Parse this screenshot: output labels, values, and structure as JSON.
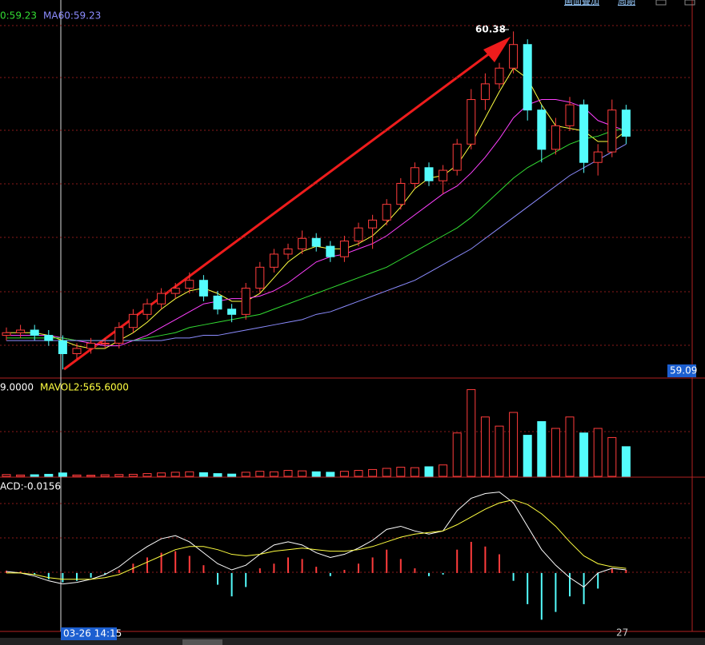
{
  "chart_data": [
    {
      "type": "candlestick",
      "legend": [
        {
          "text": "0:59.23",
          "color": "#33dd33"
        },
        {
          "text": "MA60:59.23",
          "color": "#8c8cff"
        }
      ],
      "high_label": "60.38",
      "price_label": "59.09",
      "ylim": [
        59.06,
        60.5
      ],
      "up_color": "#ff3c3c",
      "down_color": "#54fcfc",
      "open": [
        59.22,
        59.23,
        59.24,
        59.22,
        59.2,
        59.15,
        59.17,
        59.19,
        59.19,
        59.25,
        59.3,
        59.34,
        59.38,
        59.4,
        59.43,
        59.37,
        59.32,
        59.3,
        59.4,
        59.48,
        59.53,
        59.55,
        59.59,
        59.56,
        59.52,
        59.58,
        59.63,
        59.66,
        59.72,
        59.8,
        59.86,
        59.81,
        59.85,
        59.95,
        60.12,
        60.18,
        60.24,
        60.33,
        60.08,
        59.93,
        60.02,
        60.1,
        59.88,
        59.92,
        60.08
      ],
      "high": [
        59.25,
        59.26,
        59.26,
        59.24,
        59.22,
        59.19,
        59.21,
        59.21,
        59.27,
        59.32,
        59.36,
        59.4,
        59.42,
        59.46,
        59.45,
        59.39,
        59.34,
        59.42,
        59.5,
        59.55,
        59.57,
        59.62,
        59.61,
        59.58,
        59.6,
        59.65,
        59.68,
        59.74,
        59.82,
        59.88,
        59.88,
        59.87,
        59.97,
        60.16,
        60.22,
        60.26,
        60.38,
        60.35,
        60.1,
        60.05,
        60.13,
        60.12,
        59.95,
        60.12,
        60.1
      ],
      "low": [
        59.2,
        59.21,
        59.2,
        59.18,
        59.09,
        59.13,
        59.15,
        59.17,
        59.17,
        59.23,
        59.28,
        59.32,
        59.36,
        59.38,
        59.35,
        59.3,
        59.27,
        59.28,
        59.38,
        59.46,
        59.51,
        59.53,
        59.54,
        59.5,
        59.5,
        59.56,
        59.55,
        59.64,
        59.7,
        59.78,
        59.79,
        59.76,
        59.83,
        59.93,
        60.08,
        60.16,
        60.22,
        60.04,
        59.88,
        59.91,
        60.0,
        59.84,
        59.83,
        59.9,
        59.95
      ],
      "close": [
        59.23,
        59.24,
        59.22,
        59.2,
        59.15,
        59.17,
        59.19,
        59.19,
        59.25,
        59.3,
        59.34,
        59.38,
        59.4,
        59.43,
        59.37,
        59.32,
        59.3,
        59.4,
        59.48,
        59.53,
        59.55,
        59.59,
        59.56,
        59.52,
        59.58,
        59.63,
        59.66,
        59.72,
        59.8,
        59.86,
        59.81,
        59.85,
        59.95,
        60.12,
        60.18,
        60.24,
        60.33,
        60.08,
        59.93,
        60.02,
        60.1,
        59.88,
        59.92,
        60.08,
        59.98
      ],
      "lines": [
        {
          "color": "#ffff40",
          "values": [
            59.23,
            59.23,
            59.23,
            59.22,
            59.2,
            59.18,
            59.17,
            59.17,
            59.2,
            59.23,
            59.27,
            59.32,
            59.36,
            59.39,
            59.4,
            59.38,
            59.35,
            59.35,
            59.38,
            59.44,
            59.5,
            59.54,
            59.56,
            59.55,
            59.55,
            59.57,
            59.6,
            59.65,
            59.71,
            59.78,
            59.82,
            59.83,
            59.87,
            59.95,
            60.05,
            60.15,
            60.24,
            60.2,
            60.1,
            60.02,
            60.01,
            60.0,
            59.96,
            59.96,
            60.0
          ]
        },
        {
          "color": "#ff40ff",
          "values": [
            59.22,
            59.22,
            59.22,
            59.22,
            59.21,
            59.2,
            59.19,
            59.18,
            59.18,
            59.2,
            59.22,
            59.25,
            59.28,
            59.31,
            59.34,
            59.35,
            59.36,
            59.36,
            59.37,
            59.39,
            59.42,
            59.46,
            59.5,
            59.52,
            59.53,
            59.55,
            59.57,
            59.6,
            59.64,
            59.68,
            59.72,
            59.76,
            59.79,
            59.84,
            59.9,
            59.97,
            60.05,
            60.1,
            60.12,
            60.12,
            60.11,
            60.09,
            60.04,
            60.02,
            60.0
          ]
        },
        {
          "color": "#33dd33",
          "values": [
            59.21,
            59.21,
            59.21,
            59.21,
            59.21,
            59.2,
            59.2,
            59.2,
            59.2,
            59.2,
            59.21,
            59.22,
            59.23,
            59.25,
            59.26,
            59.27,
            59.28,
            59.29,
            59.3,
            59.32,
            59.34,
            59.36,
            59.38,
            59.4,
            59.42,
            59.44,
            59.46,
            59.48,
            59.51,
            59.54,
            59.57,
            59.6,
            59.63,
            59.67,
            59.72,
            59.77,
            59.82,
            59.86,
            59.89,
            59.92,
            59.95,
            59.97,
            59.98,
            60.0,
            60.01
          ]
        },
        {
          "color": "#8c8cff",
          "values": [
            59.2,
            59.2,
            59.2,
            59.2,
            59.2,
            59.2,
            59.2,
            59.2,
            59.2,
            59.2,
            59.2,
            59.2,
            59.21,
            59.21,
            59.22,
            59.22,
            59.23,
            59.24,
            59.25,
            59.26,
            59.27,
            59.28,
            59.3,
            59.31,
            59.33,
            59.35,
            59.37,
            59.39,
            59.41,
            59.43,
            59.46,
            59.49,
            59.52,
            59.55,
            59.59,
            59.63,
            59.67,
            59.71,
            59.75,
            59.79,
            59.83,
            59.86,
            59.89,
            59.92,
            59.95
          ]
        }
      ]
    },
    {
      "type": "bar",
      "legend": [
        {
          "text": "9.0000",
          "color": "#ffffff"
        },
        {
          "text": "MAVOL2:565.6000",
          "color": "#ffff40"
        }
      ],
      "ylim": [
        0,
        4200
      ],
      "values": [
        80,
        60,
        70,
        90,
        150,
        60,
        50,
        70,
        80,
        90,
        120,
        150,
        180,
        200,
        160,
        120,
        100,
        180,
        220,
        200,
        260,
        240,
        200,
        180,
        220,
        260,
        300,
        350,
        400,
        380,
        420,
        500,
        1900,
        3800,
        2600,
        2200,
        2800,
        1800,
        2400,
        2100,
        2600,
        1900,
        2100,
        1700,
        1300
      ]
    },
    {
      "type": "macd",
      "legend": [
        {
          "text": "ACD:-0.0156",
          "color": "#ffffff"
        }
      ],
      "ylim": [
        -0.075,
        0.12
      ],
      "up_color": "#ff3c3c",
      "down_color": "#54fcfc",
      "values": [
        0.003,
        0.002,
        -0.002,
        -0.008,
        -0.012,
        -0.01,
        -0.006,
        -0.002,
        0.004,
        0.012,
        0.02,
        0.026,
        0.028,
        0.022,
        0.01,
        -0.015,
        -0.03,
        -0.018,
        0.006,
        0.012,
        0.02,
        0.018,
        0.008,
        -0.004,
        0.004,
        0.012,
        0.02,
        0.03,
        0.018,
        0.006,
        -0.004,
        -0.002,
        0.03,
        0.04,
        0.034,
        0.024,
        -0.01,
        -0.04,
        -0.06,
        -0.05,
        -0.03,
        -0.04,
        -0.02,
        0.006,
        0.004
      ],
      "lines": [
        {
          "color": "#ffffff",
          "values": [
            0.002,
            0.0,
            -0.004,
            -0.01,
            -0.014,
            -0.012,
            -0.008,
            -0.002,
            0.008,
            0.022,
            0.034,
            0.044,
            0.048,
            0.04,
            0.026,
            0.012,
            0.004,
            0.01,
            0.024,
            0.036,
            0.04,
            0.036,
            0.026,
            0.02,
            0.024,
            0.032,
            0.042,
            0.056,
            0.06,
            0.054,
            0.05,
            0.054,
            0.08,
            0.096,
            0.102,
            0.104,
            0.09,
            0.06,
            0.03,
            0.01,
            -0.006,
            -0.018,
            0.0,
            0.006,
            0.004
          ]
        },
        {
          "color": "#ffff40",
          "values": [
            0.0,
            0.0,
            -0.002,
            -0.006,
            -0.008,
            -0.008,
            -0.008,
            -0.006,
            -0.002,
            0.006,
            0.014,
            0.022,
            0.03,
            0.034,
            0.034,
            0.03,
            0.024,
            0.022,
            0.024,
            0.028,
            0.03,
            0.032,
            0.03,
            0.028,
            0.028,
            0.03,
            0.034,
            0.04,
            0.046,
            0.05,
            0.052,
            0.054,
            0.062,
            0.072,
            0.082,
            0.09,
            0.094,
            0.088,
            0.076,
            0.06,
            0.04,
            0.022,
            0.012,
            0.008,
            0.006
          ]
        }
      ]
    }
  ],
  "toolbar": [
    "画面叠加",
    "周期"
  ],
  "footer": {
    "cursor_time": "03-26 14:15",
    "day_label": "27"
  }
}
